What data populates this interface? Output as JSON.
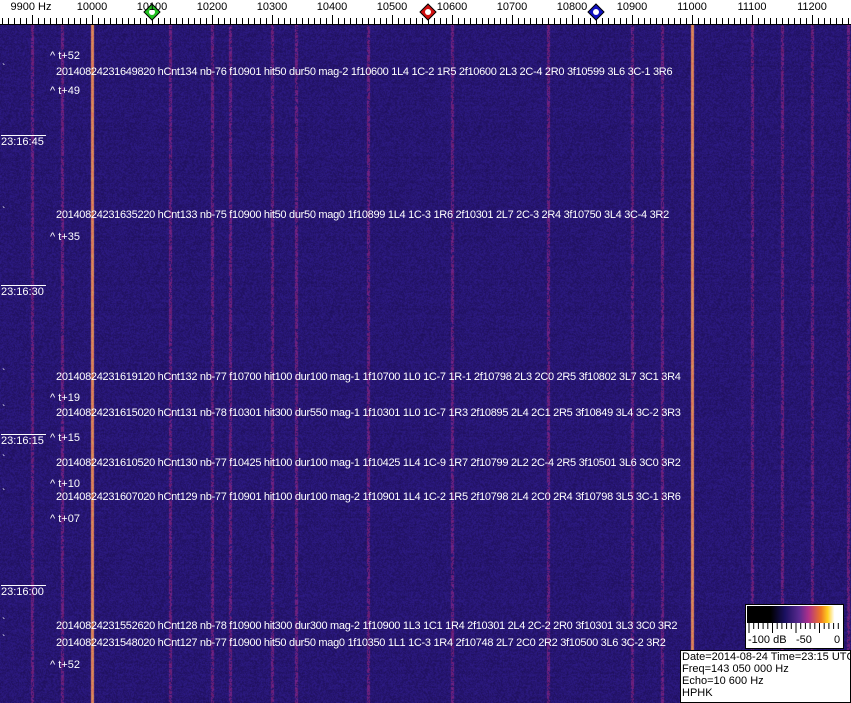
{
  "frequency_scale": {
    "unit_label": "9900 Hz",
    "labels": [
      "10000",
      "10100",
      "10200",
      "10300",
      "10400",
      "10500",
      "10600",
      "10700",
      "10800",
      "10900",
      "11000",
      "11100",
      "11200"
    ],
    "label_freqs": [
      10000,
      10100,
      10200,
      10300,
      10400,
      10500,
      10600,
      10700,
      10800,
      10900,
      11000,
      11100,
      11200
    ],
    "start_freq_hz": 9900,
    "markers": [
      {
        "name": "green-marker",
        "freq_hz": 10100,
        "color": "#20c020"
      },
      {
        "name": "red-marker",
        "freq_hz": 10560,
        "color": "#d01010"
      },
      {
        "name": "blue-marker",
        "freq_hz": 10840,
        "color": "#1010c0"
      }
    ]
  },
  "waterfall": {
    "background_color": "#2a1a80",
    "strong_carrier_freqs_hz": [
      10000,
      11000
    ],
    "time_labels": [
      {
        "text": "23:16:45",
        "seconds": 45
      },
      {
        "text": "23:16:30",
        "seconds": 30
      },
      {
        "text": "23:16:15",
        "seconds": 15
      },
      {
        "text": "23:16:00",
        "seconds": 0
      }
    ],
    "detections": [
      {
        "text": "20140824231649820 hCnt134 nb-76 f10901 hit50 dur50 mag-2 1f10600 1L4 1C-2 1R5 2f10600 2L3 2C-4 2R0 3f10599 3L6 3C-1 3R6",
        "mark": "^ t+52"
      },
      {
        "text": "",
        "mark": "^ t+49"
      },
      {
        "text": "20140824231635220 hCnt133 nb-75 f10900 hit50 dur50 mag0 1f10899 1L4 1C-3 1R6 2f10301 2L7 2C-3 2R4 3f10750 3L4 3C-4 3R2",
        "mark": "^ t+35"
      },
      {
        "text": "20140824231619120 hCnt132 nb-77 f10700 hit100 dur100 mag-1 1f10700 1L0 1C-7 1R-1 2f10798 2L3 2C0 2R5 3f10802 3L7 3C1 3R4",
        "mark": "^ t+19"
      },
      {
        "text": "20140824231615020 hCnt131 nb-78 f10301 hit300 dur550 mag-1 1f10301 1L0 1C-7 1R3 2f10895 2L4 2C1 2R5 3f10849 3L4 3C-2 3R3",
        "mark": "^ t+15"
      },
      {
        "text": "20140824231610520 hCnt130 nb-77 f10425 hit100 dur100 mag-1 1f10425 1L4 1C-9 1R7 2f10799 2L2 2C-4 2R5 3f10501 3L6 3C0 3R2",
        "mark": "^ t+10"
      },
      {
        "text": "20140824231607020 hCnt129 nb-77 f10901 hit100 dur100 mag-2 1f10901 1L4 1C-2 1R5 2f10798 2L4 2C0 2R4 3f10798 3L5 3C-1 3R6",
        "mark": "^ t+07"
      },
      {
        "text": "20140824231552620 hCnt128 nb-78 f10900 hit300 dur300 mag-2 1f10900 1L3 1C1 1R4 2f10301 2L4 2C-2 2R0 3f10301 3L3 3C0 3R2",
        "mark": "^ t+52"
      },
      {
        "text": "20140824231548020 hCnt127 nb-77 f10900 hit50 dur50 mag0 1f10350 1L1 1C-3 1R4 2f10748 2L7 2C0 2R2 3f10500 3L6 3C-2 3R2",
        "mark": ""
      }
    ]
  },
  "colorbar": {
    "labels": [
      "-100 dB",
      "-50",
      "0"
    ]
  },
  "info": {
    "date_time": "Date=2014-08-24 Time=23:15 UTC",
    "freq": "Freq=143 050 000 Hz",
    "echo": "Echo=10 600 Hz",
    "station": "HPHK"
  }
}
